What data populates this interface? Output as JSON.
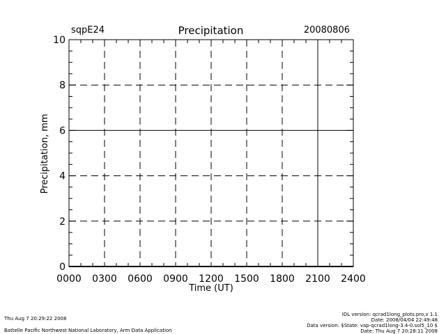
{
  "header": {
    "site": "sqpE24",
    "date": "20080806"
  },
  "chart_data": {
    "type": "line",
    "title": "Precipitation",
    "xlabel": "Time (UT)",
    "ylabel": "Precipitation, mm",
    "xlim": [
      0,
      2400
    ],
    "ylim": [
      0,
      10
    ],
    "x_ticks": [
      "0000",
      "0300",
      "0600",
      "0900",
      "1200",
      "1500",
      "1800",
      "2100",
      "2400"
    ],
    "y_ticks": [
      "0",
      "2",
      "4",
      "6",
      "8",
      "10"
    ],
    "grid": true,
    "series": []
  },
  "footer": {
    "left_lines": [
      "Thu Aug  7 20:29:22 2008",
      "Battelle Pacific Northwest National Laboratory, Arm Data Application"
    ],
    "right_lines": [
      "IDL version: qcrad1long_plots.pro,v 1.1",
      "Date: 2008/04/04 22:49:48",
      "Data version: $State: vap-qcrad1long-3.4-0.sol5_10 $",
      "Date: Thu Aug  7 20:28:11 2008"
    ]
  }
}
